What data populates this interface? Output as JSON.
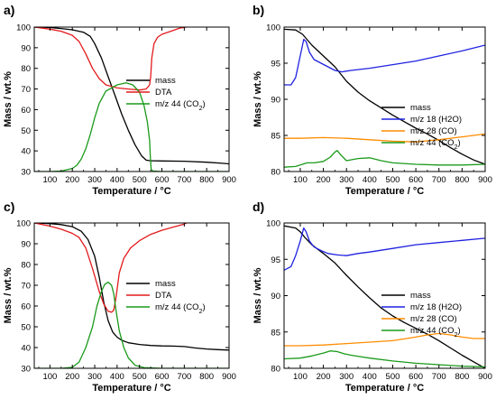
{
  "colors": {
    "mass": "#000000",
    "DTA": "#e31a1c",
    "ms44": "#1a9a1a",
    "ms18": "#1f22e0",
    "ms28": "#ff8c00"
  },
  "chart_data": [
    {
      "panel": "a)",
      "type": "line",
      "xlabel": "Temperature / °C",
      "ylabel": "Mass / wt.%",
      "xlim": [
        30,
        900
      ],
      "ylim": [
        30,
        100
      ],
      "xticks": [
        100,
        200,
        300,
        400,
        500,
        600,
        700,
        800,
        900
      ],
      "yticks": [
        30,
        40,
        50,
        60,
        70,
        80,
        90,
        100
      ],
      "legend_position": "right",
      "series": [
        {
          "key": "mass",
          "name": "mass",
          "x": [
            30,
            100,
            150,
            200,
            250,
            280,
            300,
            330,
            360,
            390,
            420,
            450,
            480,
            510,
            530,
            550,
            560,
            600,
            700,
            800,
            870,
            900
          ],
          "y": [
            100,
            99.8,
            99.3,
            98.7,
            97.5,
            95.5,
            92,
            85,
            76,
            67,
            58,
            50,
            43,
            37.5,
            35.5,
            35.2,
            35.2,
            35.1,
            35,
            34.5,
            34,
            33.7
          ]
        },
        {
          "key": "DTA",
          "name": "DTA",
          "x": [
            30,
            100,
            150,
            200,
            230,
            260,
            290,
            320,
            350,
            400,
            450,
            500,
            530,
            545,
            550,
            555,
            565,
            580,
            600,
            640,
            680,
            710
          ],
          "y": [
            100,
            99,
            98,
            96,
            93,
            87,
            80,
            75,
            72,
            70.5,
            70,
            69.5,
            70,
            72,
            76,
            85,
            92,
            95,
            96.5,
            98,
            99.5,
            100
          ]
        },
        {
          "key": "ms44",
          "name": "m/z 44 (CO2)",
          "x": [
            30,
            100,
            150,
            200,
            220,
            240,
            260,
            280,
            300,
            320,
            350,
            400,
            440,
            470,
            500,
            520,
            535,
            545,
            548,
            552,
            560,
            600,
            700,
            800,
            900
          ],
          "y": [
            30,
            30,
            30.2,
            31.5,
            33,
            36,
            41,
            48,
            56,
            63,
            69,
            72,
            73,
            72,
            68.5,
            62,
            54,
            45,
            38,
            31,
            30.2,
            30,
            30,
            30,
            30
          ]
        }
      ]
    },
    {
      "panel": "b)",
      "type": "line",
      "xlabel": "Temperature / °C",
      "ylabel": "Mass / wt.%",
      "xlim": [
        30,
        900
      ],
      "ylim": [
        80,
        100
      ],
      "xticks": [
        100,
        200,
        300,
        400,
        500,
        600,
        700,
        800,
        900
      ],
      "yticks": [
        80,
        85,
        90,
        95,
        100
      ],
      "legend_position": "lower-right",
      "series": [
        {
          "key": "mass",
          "name": "mass",
          "x": [
            30,
            80,
            110,
            150,
            200,
            250,
            300,
            350,
            400,
            450,
            500,
            550,
            600,
            650,
            700,
            750,
            800,
            850,
            900
          ],
          "y": [
            99.7,
            99.6,
            99,
            97.5,
            96,
            94.5,
            92.5,
            91,
            89.8,
            88.8,
            87.8,
            86.9,
            86,
            85.2,
            84.3,
            83.3,
            82.4,
            81.6,
            81
          ]
        },
        {
          "key": "ms18",
          "name": "m/z 18 (H2O)",
          "x": [
            30,
            60,
            80,
            100,
            115,
            125,
            140,
            160,
            190,
            220,
            250,
            280,
            320,
            400,
            500,
            600,
            700,
            800,
            900
          ],
          "y": [
            92,
            92,
            93,
            96,
            98.3,
            98,
            96.5,
            95.5,
            95,
            94.5,
            94,
            93.8,
            94,
            94.3,
            94.8,
            95.3,
            96,
            96.7,
            97.5
          ]
        },
        {
          "key": "ms28",
          "name": "m/z 28 (CO)",
          "x": [
            30,
            100,
            200,
            300,
            400,
            500,
            600,
            700,
            800,
            900
          ],
          "y": [
            84.6,
            84.6,
            84.7,
            84.6,
            84.4,
            84.2,
            84.1,
            84.4,
            84.8,
            85.2
          ]
        },
        {
          "key": "ms44",
          "name": "m/z 44 (CO2)",
          "x": [
            30,
            80,
            100,
            130,
            160,
            200,
            230,
            250,
            260,
            275,
            300,
            350,
            400,
            450,
            500,
            600,
            700,
            800,
            900
          ],
          "y": [
            80.6,
            80.7,
            80.9,
            81.2,
            81.2,
            81.4,
            82,
            82.7,
            82.9,
            82.3,
            81.5,
            81.8,
            81.9,
            81.5,
            81.2,
            81,
            80.9,
            80.9,
            81
          ]
        }
      ]
    },
    {
      "panel": "c)",
      "type": "line",
      "xlabel": "Temperature / °C",
      "ylabel": "Mass / wt.%",
      "xlim": [
        30,
        900
      ],
      "ylim": [
        30,
        100
      ],
      "xticks": [
        100,
        200,
        300,
        400,
        500,
        600,
        700,
        800,
        900
      ],
      "yticks": [
        30,
        40,
        50,
        60,
        70,
        80,
        90,
        100
      ],
      "legend_position": "right",
      "series": [
        {
          "key": "mass",
          "name": "mass",
          "x": [
            30,
            100,
            150,
            200,
            240,
            270,
            300,
            320,
            340,
            360,
            380,
            400,
            420,
            450,
            500,
            550,
            600,
            650,
            700,
            750,
            800,
            850,
            900
          ],
          "y": [
            100,
            99.7,
            99.2,
            98.2,
            96,
            92,
            84,
            74,
            62,
            53,
            47.5,
            45,
            43.5,
            42.3,
            41.5,
            41,
            40.8,
            40.7,
            40.5,
            39.8,
            39.3,
            39,
            38.8
          ]
        },
        {
          "key": "DTA",
          "name": "DTA",
          "x": [
            30,
            100,
            150,
            200,
            230,
            260,
            290,
            320,
            340,
            360,
            375,
            385,
            395,
            410,
            430,
            460,
            500,
            550,
            600,
            650,
            700,
            710
          ],
          "y": [
            100,
            98.5,
            97,
            95,
            93,
            88,
            78,
            67,
            61,
            57.5,
            57,
            58,
            64,
            76,
            83,
            88,
            91.5,
            94.5,
            96.5,
            98,
            99.5,
            100
          ]
        },
        {
          "key": "ms44",
          "name": "m/z 44 (CO2)",
          "x": [
            30,
            150,
            200,
            230,
            260,
            290,
            310,
            330,
            345,
            360,
            375,
            385,
            395,
            410,
            430,
            450,
            480,
            520,
            600,
            900
          ],
          "y": [
            30,
            30,
            30.5,
            33,
            40,
            50,
            60,
            67,
            70.5,
            71.5,
            70,
            66,
            58,
            48,
            40,
            35,
            31.5,
            30.3,
            30,
            30
          ]
        }
      ]
    },
    {
      "panel": "d)",
      "type": "line",
      "xlabel": "Temperature / °C",
      "ylabel": "Mass / wt.%",
      "xlim": [
        30,
        900
      ],
      "ylim": [
        80,
        100
      ],
      "xticks": [
        100,
        200,
        300,
        400,
        500,
        600,
        700,
        800,
        900
      ],
      "yticks": [
        80,
        85,
        90,
        95,
        100
      ],
      "legend_position": "lower-right",
      "series": [
        {
          "key": "mass",
          "name": "mass",
          "x": [
            30,
            80,
            100,
            120,
            150,
            200,
            250,
            300,
            350,
            400,
            450,
            500,
            550,
            600,
            650,
            700,
            750,
            800,
            850,
            900
          ],
          "y": [
            99.6,
            99.3,
            98.8,
            98,
            97,
            95.8,
            94.5,
            92.8,
            91.2,
            89.7,
            88.3,
            87.2,
            86.3,
            85.5,
            84.7,
            83.8,
            82.8,
            81.8,
            80.9,
            80
          ]
        },
        {
          "key": "ms18",
          "name": "m/z 18 (H2O)",
          "x": [
            30,
            60,
            80,
            100,
            115,
            125,
            140,
            160,
            190,
            220,
            260,
            300,
            350,
            400,
            500,
            600,
            700,
            800,
            900
          ],
          "y": [
            93.5,
            94,
            95.5,
            97.5,
            99.3,
            98.8,
            97.5,
            96.7,
            96.2,
            95.8,
            95.6,
            95.5,
            95.8,
            96,
            96.5,
            97,
            97.3,
            97.6,
            97.9
          ]
        },
        {
          "key": "ms28",
          "name": "m/z 28 (CO)",
          "x": [
            30,
            100,
            200,
            300,
            400,
            500,
            600,
            650,
            700,
            750,
            800,
            850,
            900
          ],
          "y": [
            83.1,
            83.1,
            83.2,
            83.4,
            83.6,
            83.8,
            84.3,
            84.6,
            84.8,
            84.6,
            84.3,
            84.1,
            84.1
          ]
        },
        {
          "key": "ms44",
          "name": "m/z 44 (CO2)",
          "x": [
            30,
            100,
            150,
            200,
            230,
            260,
            290,
            320,
            360,
            400,
            500,
            600,
            700,
            800,
            900
          ],
          "y": [
            81.3,
            81.4,
            81.7,
            82.1,
            82.4,
            82.3,
            82,
            81.8,
            81.6,
            81.4,
            81,
            80.7,
            80.5,
            80.3,
            80.2
          ]
        }
      ]
    }
  ]
}
